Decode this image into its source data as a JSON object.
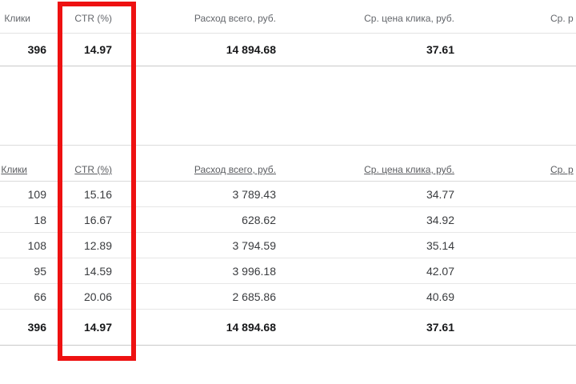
{
  "highlight": {
    "name": "ctr-column-highlight",
    "color": "#ee1111"
  },
  "link_color": "#5a5c60",
  "summary": {
    "headers": [
      "Клики",
      "CTR (%)",
      "Расход всего, руб.",
      "Ср. цена клика, руб.",
      "Ср. р"
    ],
    "total": {
      "clicks": "396",
      "ctr": "14.97",
      "cost": "14 894.68",
      "avg_price": "37.61"
    }
  },
  "details": {
    "headers": [
      "Клики",
      "CTR (%)",
      "Расход всего, руб.",
      "Ср. цена клика, руб.",
      "Ср. р"
    ],
    "rows": [
      {
        "clicks": "109",
        "ctr": "15.16",
        "cost": "3 789.43",
        "avg_price": "34.77"
      },
      {
        "clicks": "18",
        "ctr": "16.67",
        "cost": "628.62",
        "avg_price": "34.92"
      },
      {
        "clicks": "108",
        "ctr": "12.89",
        "cost": "3 794.59",
        "avg_price": "35.14"
      },
      {
        "clicks": "95",
        "ctr": "14.59",
        "cost": "3 996.18",
        "avg_price": "42.07"
      },
      {
        "clicks": "66",
        "ctr": "20.06",
        "cost": "2 685.86",
        "avg_price": "40.69"
      }
    ],
    "total": {
      "clicks": "396",
      "ctr": "14.97",
      "cost": "14 894.68",
      "avg_price": "37.61"
    }
  }
}
